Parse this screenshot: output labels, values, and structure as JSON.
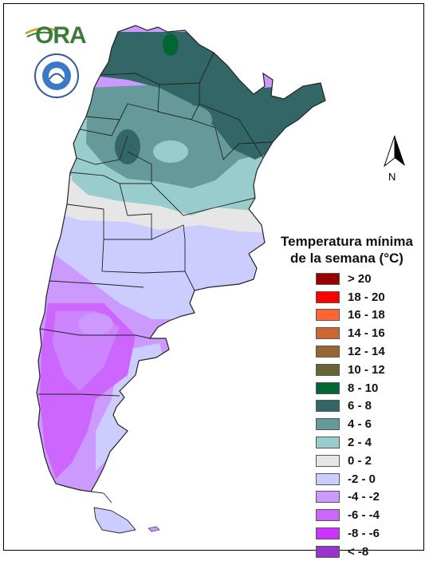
{
  "logo": {
    "text": "ORA",
    "seal_text": "SERVICIO METEOROLOGICO NACIONAL ARGENTINA"
  },
  "north_arrow": {
    "label": "N"
  },
  "legend": {
    "title_line1": "Temperatura mínima",
    "title_line2": "de la semana (°C)",
    "items": [
      {
        "label": "> 20",
        "color": "#990000"
      },
      {
        "label": "18 - 20",
        "color": "#ff0000"
      },
      {
        "label": "16 - 18",
        "color": "#ff6633"
      },
      {
        "label": "14 - 16",
        "color": "#cc6633"
      },
      {
        "label": "12 - 14",
        "color": "#996633"
      },
      {
        "label": "10 - 12",
        "color": "#666633"
      },
      {
        "label": "8 - 10",
        "color": "#006633"
      },
      {
        "label": "6 - 8",
        "color": "#336666"
      },
      {
        "label": "4 - 6",
        "color": "#669999"
      },
      {
        "label": "2 - 4",
        "color": "#99cccc"
      },
      {
        "label": "0 - 2",
        "color": "#e6e6e6"
      },
      {
        "label": "-2 - 0",
        "color": "#ccccff"
      },
      {
        "label": "-4 - -2",
        "color": "#cc99ff"
      },
      {
        "label": "-6 - -4",
        "color": "#cc66ff"
      },
      {
        "label": "-8 - -6",
        "color": "#cc33ff"
      },
      {
        "label": "< -8",
        "color": "#9933cc"
      }
    ]
  }
}
